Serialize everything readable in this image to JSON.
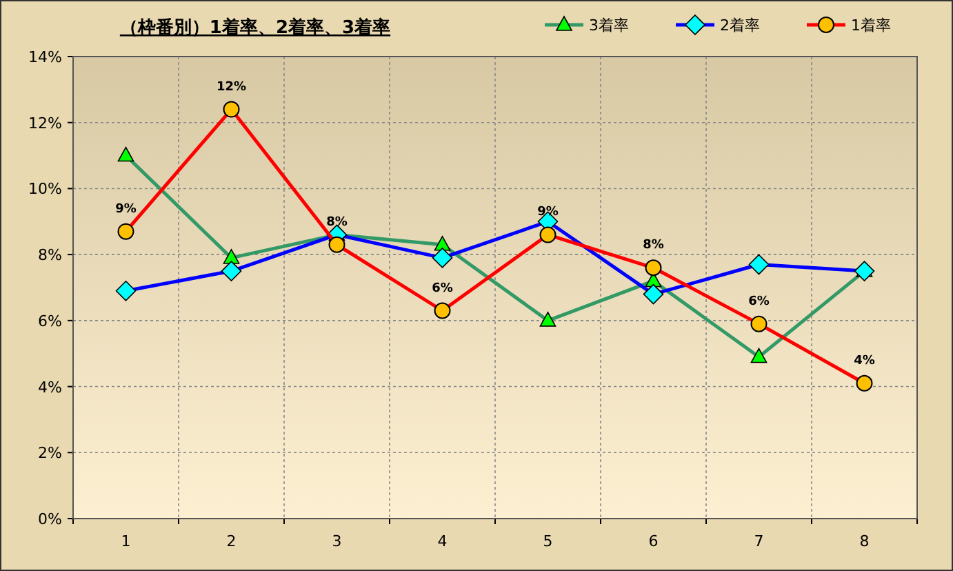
{
  "chart_data": {
    "type": "line",
    "title": "（枠番別）1着率、2着率、3着率",
    "categories": [
      "1",
      "2",
      "3",
      "4",
      "5",
      "6",
      "7",
      "8"
    ],
    "ylim": [
      0,
      14
    ],
    "yticks": [
      {
        "value": 0,
        "label": "0%"
      },
      {
        "value": 2,
        "label": "2%"
      },
      {
        "value": 4,
        "label": "4%"
      },
      {
        "value": 6,
        "label": "6%"
      },
      {
        "value": 8,
        "label": "8%"
      },
      {
        "value": 10,
        "label": "10%"
      },
      {
        "value": 12,
        "label": "12%"
      },
      {
        "value": 14,
        "label": "14%"
      }
    ],
    "grid": true,
    "legend": "top right",
    "series": [
      {
        "name": "3着率",
        "color": "#339966",
        "marker": "triangle",
        "values": [
          11.0,
          7.9,
          8.6,
          8.3,
          6.0,
          7.2,
          4.9,
          7.5
        ]
      },
      {
        "name": "2着率",
        "color": "#0000ff",
        "marker": "diamond",
        "values": [
          6.9,
          7.5,
          8.6,
          7.9,
          9.0,
          6.8,
          7.7,
          7.5
        ]
      },
      {
        "name": "1着率",
        "color": "#ff0000",
        "marker": "circle",
        "values": [
          8.7,
          12.4,
          8.3,
          6.3,
          8.6,
          7.6,
          5.9,
          4.1
        ],
        "value_labels": [
          "9%",
          "12%",
          "8%",
          "6%",
          "9%",
          "8%",
          "6%",
          "4%"
        ]
      }
    ]
  }
}
